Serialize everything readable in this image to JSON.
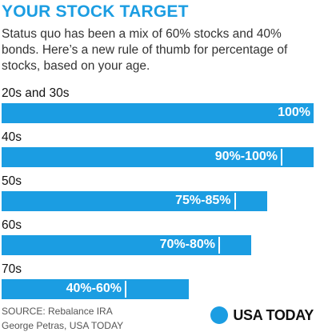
{
  "title": "YOUR STOCK TARGET",
  "subtitle": "Status quo has been a mix of 60% stocks and 40% bonds. Here’s a new rule of thumb for percentage of stocks, based on your age.",
  "chart_data": {
    "type": "bar",
    "orientation": "horizontal",
    "categories": [
      "20s and 30s",
      "40s",
      "50s",
      "60s",
      "70s"
    ],
    "ranges": [
      [
        100,
        100
      ],
      [
        90,
        100
      ],
      [
        75,
        85
      ],
      [
        70,
        80
      ],
      [
        40,
        60
      ]
    ],
    "labels": [
      "100%",
      "90%-100%",
      "75%-85%",
      "70%-80%",
      "40%-60%"
    ],
    "xlim": [
      0,
      100
    ],
    "grid": false,
    "legend": "none"
  },
  "colors": {
    "accent": "#1b9de2",
    "text": "#111111",
    "bar_label": "#ffffff"
  },
  "source": {
    "line1": "SOURCE:  Rebalance IRA",
    "line2": "George Petras, USA TODAY"
  },
  "logo": {
    "text": "USA TODAY",
    "icon": "circle-icon"
  }
}
